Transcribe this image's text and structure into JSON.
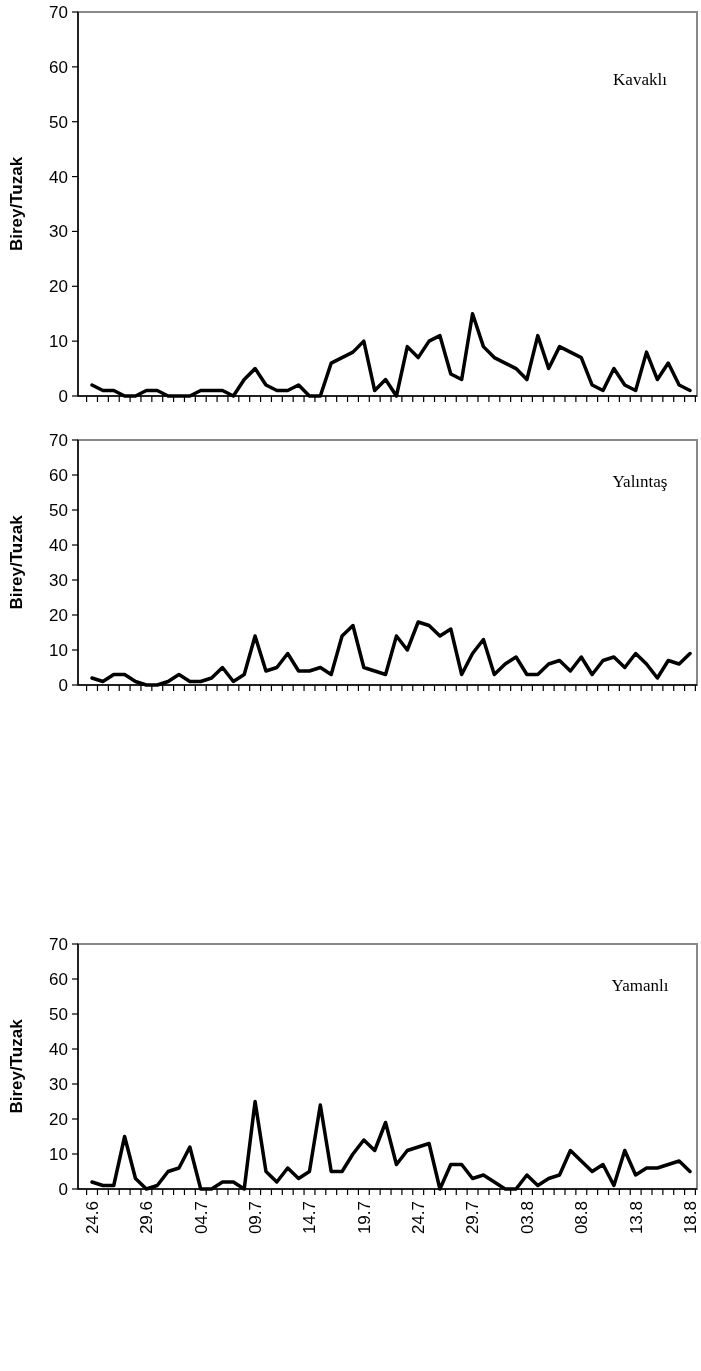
{
  "chart_data": [
    {
      "type": "line",
      "ylabel": "Birey/Tuzak",
      "annotations": [
        "Kavaklı"
      ],
      "ylim": [
        0,
        70
      ],
      "yticks": [
        0,
        10,
        20,
        30,
        40,
        50,
        60,
        70
      ],
      "tick_labels": "y",
      "categories": [
        "24.6",
        null,
        null,
        null,
        null,
        "29.6",
        null,
        null,
        null,
        null,
        "04.7",
        null,
        null,
        null,
        null,
        "09.7",
        null,
        null,
        null,
        null,
        "14.7",
        null,
        null,
        null,
        null,
        "19.7",
        null,
        null,
        null,
        null,
        "24.7",
        null,
        null,
        null,
        null,
        "29.7",
        null,
        null,
        null,
        null,
        "03.8",
        null,
        null,
        null,
        null,
        "08.8",
        null,
        null,
        null,
        null,
        "13.8",
        null,
        null,
        null,
        null,
        "18.8"
      ],
      "series": [
        {
          "color": "#000000",
          "values": [
            2,
            1,
            1,
            0,
            0,
            1,
            1,
            0,
            0,
            0,
            1,
            1,
            1,
            0,
            3,
            5,
            2,
            1,
            1,
            2,
            0,
            0,
            6,
            7,
            8,
            10,
            1,
            3,
            0,
            9,
            7,
            10,
            11,
            4,
            3,
            15,
            9,
            7,
            6,
            5,
            3,
            11,
            5,
            9,
            8,
            7,
            2,
            1,
            5,
            2,
            1,
            8,
            3,
            6,
            2,
            1
          ]
        }
      ]
    },
    {
      "type": "line",
      "ylabel": "Birey/Tuzak",
      "annotations": [
        "Yalıntaş"
      ],
      "ylim": [
        0,
        70
      ],
      "yticks": [
        0,
        10,
        20,
        30,
        40,
        50,
        60,
        70
      ],
      "tick_labels": "y",
      "categories": [
        "24.6",
        null,
        null,
        null,
        null,
        "29.6",
        null,
        null,
        null,
        null,
        "04.7",
        null,
        null,
        null,
        null,
        "09.7",
        null,
        null,
        null,
        null,
        "14.7",
        null,
        null,
        null,
        null,
        "19.7",
        null,
        null,
        null,
        null,
        "24.7",
        null,
        null,
        null,
        null,
        "29.7",
        null,
        null,
        null,
        null,
        "03.8",
        null,
        null,
        null,
        null,
        "08.8",
        null,
        null,
        null,
        null,
        "13.8",
        null,
        null,
        null,
        null,
        "18.8"
      ],
      "series": [
        {
          "color": "#000000",
          "values": [
            2,
            1,
            3,
            3,
            1,
            0,
            0,
            1,
            3,
            1,
            1,
            2,
            5,
            1,
            3,
            14,
            4,
            5,
            9,
            4,
            4,
            5,
            3,
            14,
            17,
            5,
            4,
            3,
            14,
            10,
            18,
            17,
            14,
            16,
            3,
            9,
            13,
            3,
            6,
            8,
            3,
            3,
            6,
            7,
            4,
            8,
            3,
            7,
            8,
            5,
            9,
            6,
            2,
            7,
            6,
            9
          ]
        }
      ]
    },
    {
      "type": "line",
      "ylabel": "Birey/Tuzak",
      "annotations": [
        "Yamanlı"
      ],
      "ylim": [
        0,
        70
      ],
      "yticks": [
        0,
        10,
        20,
        30,
        40,
        50,
        60,
        70
      ],
      "categories": [
        "24.6",
        null,
        null,
        null,
        null,
        "29.6",
        null,
        null,
        null,
        null,
        "04.7",
        null,
        null,
        null,
        null,
        "09.7",
        null,
        null,
        null,
        null,
        "14.7",
        null,
        null,
        null,
        null,
        "19.7",
        null,
        null,
        null,
        null,
        "24.7",
        null,
        null,
        null,
        null,
        "29.7",
        null,
        null,
        null,
        null,
        "03.8",
        null,
        null,
        null,
        null,
        "08.8",
        null,
        null,
        null,
        null,
        "13.8",
        null,
        null,
        null,
        null,
        "18.8"
      ],
      "series": [
        {
          "color": "#000000",
          "values": [
            2,
            1,
            1,
            15,
            3,
            0,
            1,
            5,
            6,
            12,
            0,
            0,
            2,
            2,
            0,
            25,
            5,
            2,
            6,
            3,
            5,
            24,
            5,
            5,
            10,
            14,
            11,
            19,
            7,
            11,
            12,
            13,
            0,
            7,
            7,
            3,
            4,
            2,
            0,
            0,
            4,
            1,
            3,
            4,
            11,
            8,
            5,
            7,
            1,
            11,
            4,
            6,
            6,
            7,
            8,
            5
          ]
        }
      ]
    }
  ]
}
